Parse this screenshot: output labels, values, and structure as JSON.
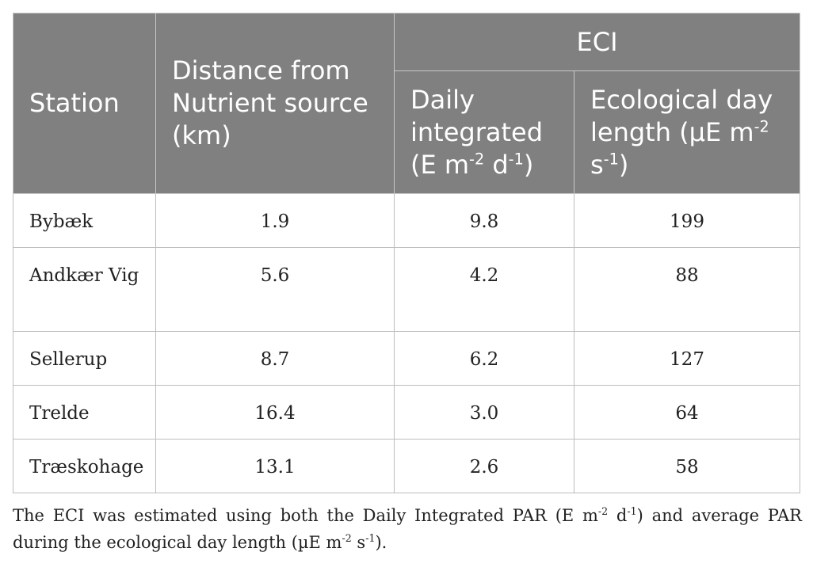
{
  "header": {
    "station": "Station",
    "distance": "Distance from Nutrient source (km)",
    "eci": "ECI",
    "daily_text": "Daily integrated (E m",
    "daily_sup1": "-2",
    "daily_mid": " d",
    "daily_sup2": "-1",
    "daily_end": ")",
    "eco_text": "Ecological day length (µE m",
    "eco_sup1": "-2",
    "eco_mid": " s",
    "eco_sup2": "-1",
    "eco_end": ")"
  },
  "rows": [
    {
      "station": "Bybæk",
      "distance": "1.9",
      "daily": "9.8",
      "eco": "199"
    },
    {
      "station": "Andkær Vig",
      "distance": "5.6",
      "daily": "4.2",
      "eco": "88"
    },
    {
      "station": "Sellerup",
      "distance": "8.7",
      "daily": "6.2",
      "eco": "127"
    },
    {
      "station": "Trelde",
      "distance": "16.4",
      "daily": "3.0",
      "eco": "64"
    },
    {
      "station": "Træskohage",
      "distance": "13.1",
      "daily": "2.6",
      "eco": "58"
    }
  ],
  "footnote": {
    "p1": "The ECI was estimated using both the Daily Integrated PAR (E m",
    "s1": "-2",
    "p2": " d",
    "s2": "-1",
    "p3": ") and average PAR during the ecological day length (µE m",
    "s3": "-2",
    "p4": " s",
    "s4": "-1",
    "p5": ")."
  }
}
